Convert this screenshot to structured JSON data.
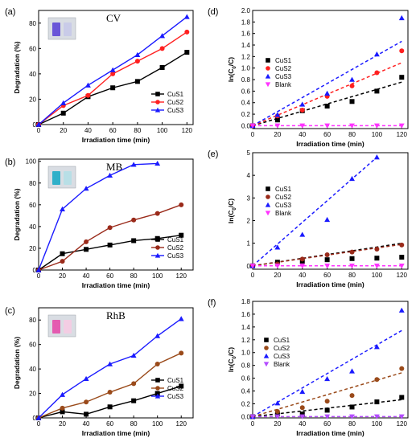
{
  "chart_data": [
    {
      "panel": "(a)",
      "title": "CV",
      "type": "line",
      "xlabel": "Irradiation time (min)",
      "ylabel": "Degradation (%)",
      "xlim": [
        0,
        125
      ],
      "ylim": [
        0,
        90
      ],
      "xticks": [
        0,
        20,
        40,
        60,
        80,
        100,
        120
      ],
      "yticks": [
        0,
        20,
        40,
        60,
        80
      ],
      "inset": "CV solution vials",
      "legend_placement": "bottom-right",
      "series": [
        {
          "name": "CuS1",
          "color": "#000000",
          "marker": "square",
          "x": [
            0,
            20,
            40,
            60,
            80,
            100,
            120
          ],
          "y": [
            0,
            9,
            22,
            29,
            34,
            45,
            57
          ]
        },
        {
          "name": "CuS2",
          "color": "#ff2020",
          "marker": "circle",
          "x": [
            0,
            20,
            40,
            60,
            80,
            100,
            120
          ],
          "y": [
            0,
            15,
            23,
            40,
            50,
            60,
            73
          ]
        },
        {
          "name": "CuS3",
          "color": "#1a1aff",
          "marker": "triangle",
          "x": [
            0,
            20,
            40,
            60,
            80,
            100,
            120
          ],
          "y": [
            0,
            17,
            31,
            43,
            55,
            70,
            85
          ]
        }
      ]
    },
    {
      "panel": "(d)",
      "title": "",
      "type": "scatter",
      "xlabel": "Irradiation time (min)",
      "ylabel": "ln(C0/C)",
      "xlim": [
        0,
        125
      ],
      "ylim": [
        -0.05,
        2.0
      ],
      "xticks": [
        0,
        20,
        40,
        60,
        80,
        100,
        120
      ],
      "yticks": [
        0.0,
        0.2,
        0.4,
        0.6,
        0.8,
        1.0,
        1.2,
        1.4,
        1.6,
        1.8,
        2.0
      ],
      "legend_placement": "top-left",
      "series": [
        {
          "name": "CuS1",
          "color": "#000000",
          "marker": "square",
          "x": [
            0,
            20,
            40,
            60,
            80,
            100,
            120
          ],
          "y": [
            0,
            0.1,
            0.26,
            0.34,
            0.42,
            0.6,
            0.84
          ],
          "fit": [
            0,
            0.0063
          ]
        },
        {
          "name": "CuS2",
          "color": "#ff2020",
          "marker": "circle",
          "x": [
            0,
            20,
            40,
            60,
            80,
            100,
            120
          ],
          "y": [
            0,
            0.17,
            0.27,
            0.51,
            0.69,
            0.92,
            1.3
          ],
          "fit": [
            0,
            0.0091
          ]
        },
        {
          "name": "CuS3",
          "color": "#1a1aff",
          "marker": "triangle",
          "x": [
            0,
            20,
            40,
            60,
            80,
            100,
            120
          ],
          "y": [
            0,
            0.19,
            0.37,
            0.56,
            0.8,
            1.24,
            1.87
          ],
          "fit": [
            0,
            0.0122
          ]
        },
        {
          "name": "Blank",
          "color": "#ff33ff",
          "marker": "triangle-down",
          "x": [
            0,
            20,
            40,
            60,
            80,
            100,
            120
          ],
          "y": [
            0,
            0,
            0,
            0,
            0,
            0,
            0
          ],
          "fit": [
            0,
            0
          ]
        }
      ]
    },
    {
      "panel": "(b)",
      "title": "MB",
      "type": "line",
      "xlabel": "Irradiation time (min)",
      "ylabel": "Degradation (%)",
      "xlim": [
        0,
        130
      ],
      "ylim": [
        0,
        102
      ],
      "xticks": [
        0,
        20,
        40,
        60,
        80,
        100,
        120
      ],
      "yticks": [
        0,
        20,
        40,
        60,
        80,
        100
      ],
      "inset": "MB solution vials",
      "legend_placement": "bottom-right",
      "series": [
        {
          "name": "CuS1",
          "color": "#000000",
          "marker": "square",
          "x": [
            0,
            20,
            40,
            60,
            80,
            100,
            120
          ],
          "y": [
            0,
            15,
            19,
            23,
            27,
            29,
            32
          ]
        },
        {
          "name": "CuS2",
          "color": "#9a2a1a",
          "marker": "circle",
          "x": [
            0,
            20,
            40,
            60,
            80,
            100,
            120
          ],
          "y": [
            0,
            8,
            26,
            39,
            46,
            52,
            60
          ]
        },
        {
          "name": "CuS3",
          "color": "#1a1aff",
          "marker": "triangle",
          "x": [
            0,
            20,
            40,
            60,
            80,
            100
          ],
          "y": [
            0,
            56,
            75,
            87,
            97,
            98
          ]
        }
      ]
    },
    {
      "panel": "(e)",
      "title": "",
      "type": "scatter",
      "xlabel": "Irradiation time (min)",
      "ylabel": "ln(C0/C)",
      "xlim": [
        0,
        125
      ],
      "ylim": [
        -0.15,
        5.0
      ],
      "xticks": [
        0,
        20,
        40,
        60,
        80,
        100,
        120
      ],
      "yticks": [
        0,
        1,
        2,
        3,
        4,
        5
      ],
      "legend_placement": "top-left",
      "series": [
        {
          "name": "CuS1",
          "color": "#000000",
          "marker": "square",
          "x": [
            0,
            20,
            40,
            60,
            80,
            100,
            120
          ],
          "y": [
            0,
            0.16,
            0.21,
            0.27,
            0.32,
            0.34,
            0.38
          ],
          "fit": [
            0,
            0.0083
          ]
        },
        {
          "name": "CuS2",
          "color": "#9a2a1a",
          "marker": "circle",
          "x": [
            0,
            20,
            40,
            60,
            80,
            100,
            120
          ],
          "y": [
            0,
            0.08,
            0.3,
            0.49,
            0.61,
            0.74,
            0.92
          ],
          "fit": [
            0,
            0.0079
          ]
        },
        {
          "name": "CuS3",
          "color": "#1a1aff",
          "marker": "triangle",
          "x": [
            0,
            20,
            40,
            60,
            80,
            100
          ],
          "y": [
            0,
            0.82,
            1.38,
            2.04,
            3.85,
            4.8
          ],
          "fit": [
            0,
            0.048
          ]
        },
        {
          "name": "Blank",
          "color": "#ff33ff",
          "marker": "triangle-down",
          "x": [
            0,
            20,
            40,
            60,
            80,
            100,
            120
          ],
          "y": [
            0,
            0,
            0,
            0,
            0,
            0,
            0
          ],
          "fit": [
            0,
            0
          ]
        }
      ]
    },
    {
      "panel": "(c)",
      "title": "RhB",
      "type": "line",
      "xlabel": "Irradiation time (min)",
      "ylabel": "Degradation (%)",
      "xlim": [
        0,
        130
      ],
      "ylim": [
        0,
        90
      ],
      "xticks": [
        0,
        20,
        40,
        60,
        80,
        100,
        120
      ],
      "yticks": [
        0,
        20,
        40,
        60,
        80
      ],
      "inset": "RhB solution vials",
      "legend_placement": "top-right",
      "series": [
        {
          "name": "CuS1",
          "color": "#000000",
          "marker": "square",
          "x": [
            0,
            20,
            40,
            60,
            80,
            100,
            120
          ],
          "y": [
            0,
            5,
            3,
            9,
            14,
            20,
            26
          ]
        },
        {
          "name": "CuS2",
          "color": "#9a4a1a",
          "marker": "circle",
          "x": [
            0,
            20,
            40,
            60,
            80,
            100,
            120
          ],
          "y": [
            0,
            8,
            13,
            21,
            28,
            44,
            53
          ]
        },
        {
          "name": "CuS3",
          "color": "#1a1aff",
          "marker": "triangle",
          "x": [
            0,
            20,
            40,
            60,
            80,
            100,
            120
          ],
          "y": [
            0,
            19,
            32,
            44,
            51,
            67,
            81
          ]
        }
      ]
    },
    {
      "panel": "(f)",
      "title": "",
      "type": "scatter",
      "xlabel": "Irradiation time (min)",
      "ylabel": "ln(C0/C)",
      "xlim": [
        0,
        125
      ],
      "ylim": [
        -0.02,
        1.8
      ],
      "xticks": [
        0,
        20,
        40,
        60,
        80,
        100,
        120
      ],
      "yticks": [
        0.0,
        0.2,
        0.4,
        0.6,
        0.8,
        1.0,
        1.2,
        1.4,
        1.6,
        1.8
      ],
      "legend_placement": "top-left",
      "series": [
        {
          "name": "CuS1",
          "color": "#000000",
          "marker": "square",
          "x": [
            0,
            20,
            40,
            60,
            80,
            100,
            120
          ],
          "y": [
            0,
            0.04,
            0.04,
            0.1,
            0.15,
            0.23,
            0.3
          ],
          "fit": [
            0,
            0.0022
          ]
        },
        {
          "name": "CuS2",
          "color": "#9a4a1a",
          "marker": "circle",
          "x": [
            0,
            20,
            40,
            60,
            80,
            100,
            120
          ],
          "y": [
            0,
            0.08,
            0.14,
            0.24,
            0.33,
            0.58,
            0.75
          ],
          "fit": [
            0,
            0.0057
          ]
        },
        {
          "name": "CuS3",
          "color": "#1a1aff",
          "marker": "triangle",
          "x": [
            0,
            20,
            40,
            60,
            80,
            100,
            120
          ],
          "y": [
            0,
            0.21,
            0.39,
            0.59,
            0.71,
            1.09,
            1.66
          ],
          "fit": [
            0,
            0.0112
          ]
        },
        {
          "name": "Blank",
          "color": "#b44cff",
          "marker": "triangle-down",
          "x": [
            0,
            20,
            40,
            60,
            80,
            100,
            120
          ],
          "y": [
            0,
            0,
            0,
            0,
            0,
            0,
            0
          ],
          "fit": [
            0,
            0
          ]
        }
      ]
    }
  ]
}
